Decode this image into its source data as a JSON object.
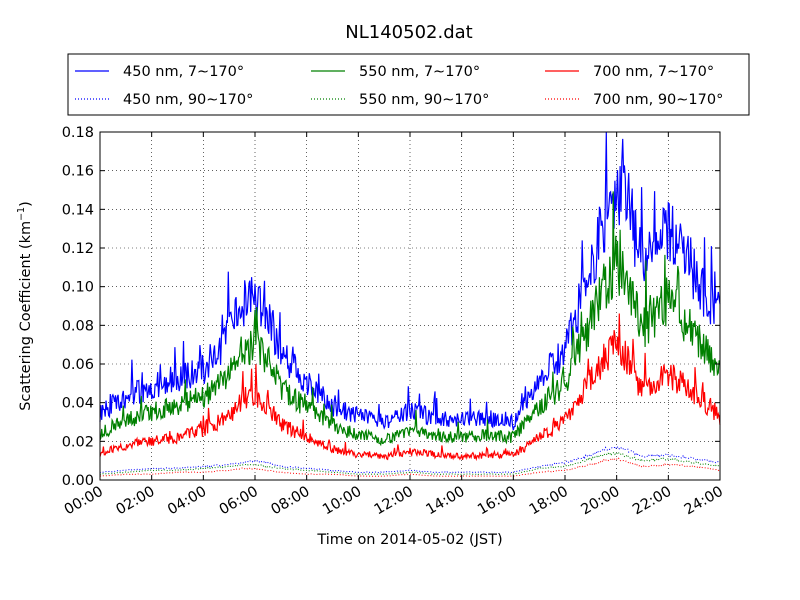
{
  "chart_data": {
    "type": "line",
    "title": "NL140502.dat",
    "xlabel": "Time on 2014-05-02 (JST)",
    "ylabel_main": "Scattering Coefficient (km",
    "ylabel_sup": "−1",
    "ylabel_end": ")",
    "xlim": [
      "00:00",
      "24:00"
    ],
    "ylim": [
      0,
      0.18
    ],
    "grid": true,
    "legend_placement": "top, above plot, 3 columns",
    "x_ticks": [
      "00:00",
      "02:00",
      "04:00",
      "06:00",
      "08:00",
      "10:00",
      "12:00",
      "14:00",
      "16:00",
      "18:00",
      "20:00",
      "22:00",
      "24:00"
    ],
    "y_ticks": [
      "0.00",
      "0.02",
      "0.04",
      "0.06",
      "0.08",
      "0.10",
      "0.12",
      "0.14",
      "0.16",
      "0.18"
    ],
    "x": [
      "00:00",
      "01:00",
      "02:00",
      "03:00",
      "04:00",
      "05:00",
      "05:30",
      "06:00",
      "06:30",
      "07:00",
      "08:00",
      "09:00",
      "10:00",
      "11:00",
      "12:00",
      "13:00",
      "14:00",
      "15:00",
      "16:00",
      "17:00",
      "18:00",
      "19:00",
      "19:30",
      "20:00",
      "20:30",
      "21:00",
      "22:00",
      "23:00",
      "24:00"
    ],
    "series": [
      {
        "name": "450 nm, 7∼170°",
        "color": "#0000ff",
        "style": "solid",
        "values": [
          0.035,
          0.043,
          0.048,
          0.053,
          0.057,
          0.075,
          0.09,
          0.095,
          0.085,
          0.065,
          0.05,
          0.038,
          0.033,
          0.03,
          0.036,
          0.032,
          0.031,
          0.032,
          0.03,
          0.052,
          0.066,
          0.11,
          0.135,
          0.152,
          0.14,
          0.11,
          0.13,
          0.105,
          0.085
        ]
      },
      {
        "name": "550 nm, 7∼170°",
        "color": "#008000",
        "style": "solid",
        "values": [
          0.024,
          0.031,
          0.035,
          0.039,
          0.043,
          0.055,
          0.068,
          0.07,
          0.062,
          0.048,
          0.037,
          0.028,
          0.023,
          0.021,
          0.026,
          0.023,
          0.022,
          0.023,
          0.022,
          0.038,
          0.05,
          0.082,
          0.1,
          0.112,
          0.102,
          0.078,
          0.093,
          0.075,
          0.055
        ]
      },
      {
        "name": "700 nm, 7∼170°",
        "color": "#ff0000",
        "style": "solid",
        "values": [
          0.014,
          0.018,
          0.02,
          0.022,
          0.026,
          0.033,
          0.042,
          0.044,
          0.038,
          0.029,
          0.022,
          0.016,
          0.013,
          0.012,
          0.015,
          0.013,
          0.012,
          0.013,
          0.013,
          0.022,
          0.03,
          0.052,
          0.062,
          0.07,
          0.062,
          0.045,
          0.055,
          0.045,
          0.033
        ]
      },
      {
        "name": "450 nm, 90∼170°",
        "color": "#0000ff",
        "style": "dotted",
        "values": [
          0.004,
          0.005,
          0.006,
          0.006,
          0.007,
          0.008,
          0.009,
          0.01,
          0.009,
          0.007,
          0.006,
          0.005,
          0.004,
          0.004,
          0.005,
          0.004,
          0.004,
          0.004,
          0.004,
          0.007,
          0.009,
          0.013,
          0.016,
          0.017,
          0.015,
          0.012,
          0.013,
          0.011,
          0.009
        ]
      },
      {
        "name": "550 nm, 90∼170°",
        "color": "#008000",
        "style": "dotted",
        "values": [
          0.003,
          0.004,
          0.005,
          0.005,
          0.006,
          0.007,
          0.008,
          0.008,
          0.007,
          0.006,
          0.005,
          0.004,
          0.003,
          0.003,
          0.004,
          0.003,
          0.003,
          0.003,
          0.003,
          0.006,
          0.007,
          0.011,
          0.013,
          0.014,
          0.012,
          0.01,
          0.011,
          0.009,
          0.007
        ]
      },
      {
        "name": "700 nm, 90∼170°",
        "color": "#ff0000",
        "style": "dotted",
        "values": [
          0.002,
          0.003,
          0.003,
          0.004,
          0.004,
          0.005,
          0.006,
          0.006,
          0.005,
          0.004,
          0.003,
          0.003,
          0.002,
          0.002,
          0.003,
          0.002,
          0.002,
          0.002,
          0.002,
          0.004,
          0.005,
          0.008,
          0.01,
          0.011,
          0.009,
          0.007,
          0.008,
          0.007,
          0.005
        ]
      }
    ]
  }
}
